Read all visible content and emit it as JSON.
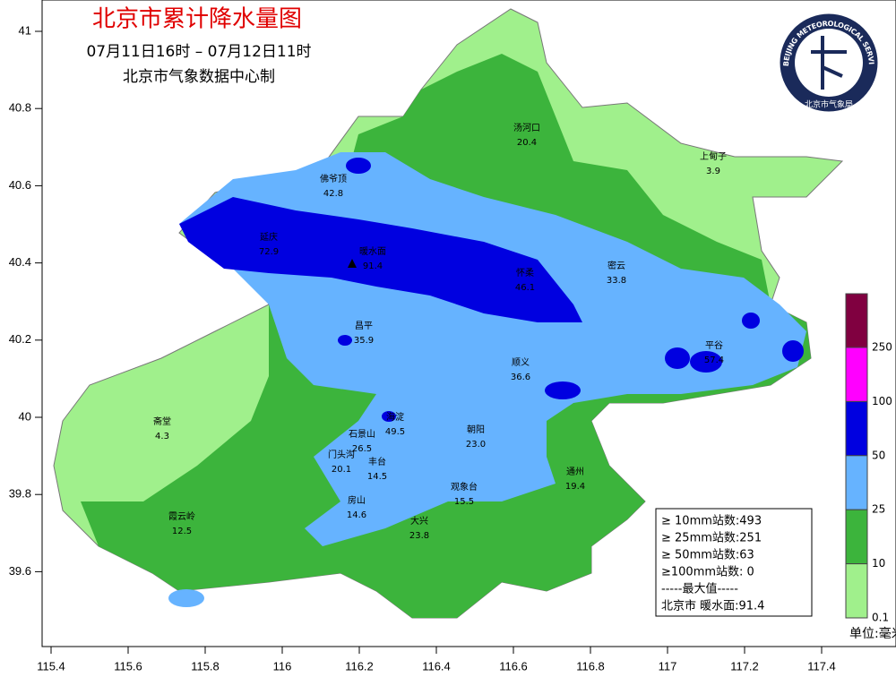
{
  "header": {
    "title": "北京市累计降水量图",
    "time_range": "07月11日16时 – 07月12日11时",
    "source": "北京市气象数据中心制"
  },
  "axes": {
    "x_ticks": [
      "115.4",
      "115.6",
      "115.8",
      "116",
      "116.2",
      "116.4",
      "116.6",
      "116.8",
      "117",
      "117.2",
      "117.4"
    ],
    "y_ticks": [
      "41",
      "40.8",
      "40.6",
      "40.4",
      "40.2",
      "40",
      "39.8",
      "39.6"
    ]
  },
  "stations": [
    {
      "name": "汤河口",
      "value": "20.4"
    },
    {
      "name": "上甸子",
      "value": "3.9"
    },
    {
      "name": "佛爷顶",
      "value": "42.8"
    },
    {
      "name": "延庆",
      "value": "72.9"
    },
    {
      "name": "暖水面",
      "value": "91.4"
    },
    {
      "name": "怀柔",
      "value": "46.1"
    },
    {
      "name": "密云",
      "value": "33.8"
    },
    {
      "name": "昌平",
      "value": "35.9"
    },
    {
      "name": "平谷",
      "value": "57.4"
    },
    {
      "name": "顺义",
      "value": "36.6"
    },
    {
      "name": "海淀",
      "value": "49.5"
    },
    {
      "name": "朝阳",
      "value": "23.0"
    },
    {
      "name": "石景山",
      "value": "26.5"
    },
    {
      "name": "门头沟",
      "value": "20.1"
    },
    {
      "name": "丰台",
      "value": "14.5"
    },
    {
      "name": "通州",
      "value": "19.4"
    },
    {
      "name": "观象台",
      "value": "15.5"
    },
    {
      "name": "房山",
      "value": "14.6"
    },
    {
      "name": "大兴",
      "value": "23.8"
    },
    {
      "name": "斋堂",
      "value": "4.3"
    },
    {
      "name": "霞云岭",
      "value": "12.5"
    }
  ],
  "stats": {
    "lines": [
      "≥ 10mm站数:493",
      "≥ 25mm站数:251",
      "≥ 50mm站数:63",
      "≥100mm站数: 0",
      "-----最大值-----",
      "北京市 暖水面:91.4"
    ]
  },
  "legend": {
    "levels": [
      "250",
      "100",
      "50",
      "25",
      "10",
      "0.1"
    ],
    "unit": "单位:毫米"
  },
  "logo": {
    "text": "BEIJING METEOROLOGICAL SERVICE",
    "name": "北京市气象局"
  }
}
